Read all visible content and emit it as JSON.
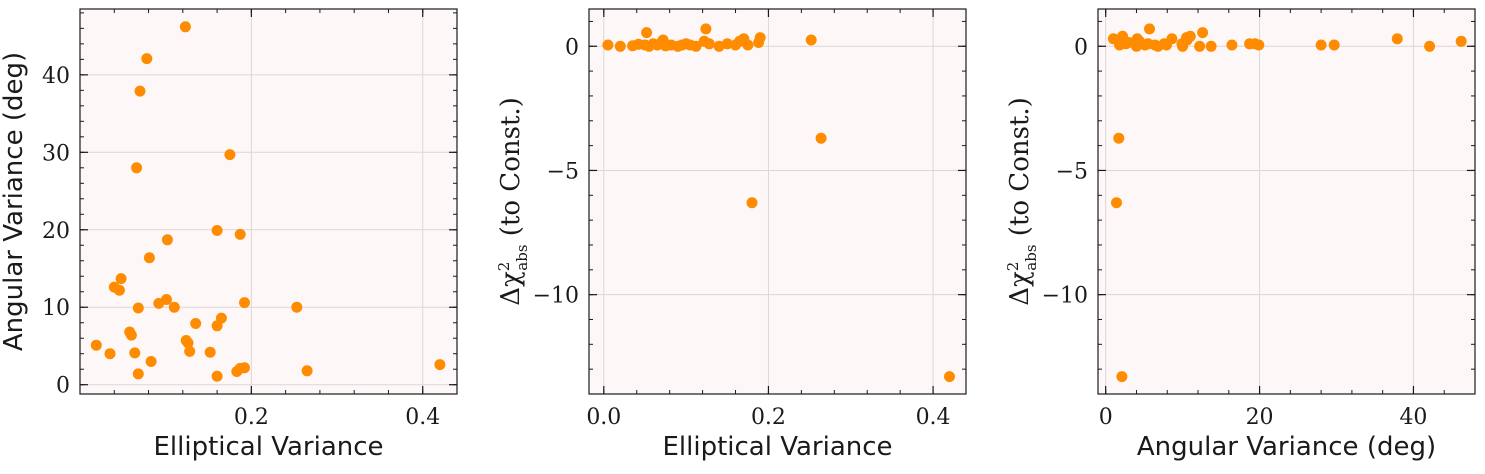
{
  "colors": {
    "marker": "#ff8c00",
    "plot_bg": "#fdf8f7",
    "grid": "#dcd6d6",
    "axes": "#1a1a1a"
  },
  "chart_data": [
    {
      "type": "scatter",
      "title": "",
      "xlabel": "Elliptical Variance",
      "ylabel": "Angular Variance (deg)",
      "xlim": [
        0.0,
        0.44
      ],
      "ylim": [
        -1.2,
        48.5
      ],
      "xticks": [
        0.2,
        0.4
      ],
      "xtick_labels": [
        "0.2",
        "0.4"
      ],
      "yticks": [
        0,
        10,
        20,
        30,
        40
      ],
      "ytick_labels": [
        "0",
        "10",
        "20",
        "30",
        "40"
      ],
      "grid": true,
      "x": [
        0.123,
        0.078,
        0.07,
        0.175,
        0.066,
        0.16,
        0.187,
        0.102,
        0.081,
        0.192,
        0.253,
        0.092,
        0.101,
        0.11,
        0.04,
        0.048,
        0.046,
        0.068,
        0.135,
        0.165,
        0.058,
        0.16,
        0.06,
        0.124,
        0.126,
        0.128,
        0.152,
        0.064,
        0.019,
        0.035,
        0.083,
        0.187,
        0.192,
        0.183,
        0.265,
        0.068,
        0.16,
        0.42
      ],
      "y": [
        46.2,
        42.1,
        37.9,
        29.7,
        28.0,
        19.9,
        19.4,
        18.7,
        16.4,
        10.6,
        10.0,
        10.5,
        11.0,
        10.0,
        12.6,
        13.7,
        12.2,
        9.9,
        7.9,
        8.6,
        6.8,
        7.6,
        6.4,
        5.7,
        5.4,
        4.3,
        4.2,
        4.1,
        5.1,
        4.0,
        3.0,
        2.1,
        2.2,
        1.7,
        1.8,
        1.4,
        1.1,
        2.6
      ]
    },
    {
      "type": "scatter",
      "title": "",
      "xlabel": "Elliptical Variance",
      "ylabel": {
        "prefix": "Δχ",
        "sup": "2",
        "sub": "abs",
        "suffix": " (to Const.)"
      },
      "xlim": [
        -0.018,
        0.44
      ],
      "ylim": [
        -14.0,
        1.5
      ],
      "xticks": [
        0.0,
        0.2,
        0.4
      ],
      "xtick_labels": [
        "0.0",
        "0.2",
        "0.4"
      ],
      "yticks": [
        0,
        -5,
        -10
      ],
      "ytick_labels": [
        "0",
        "−5",
        "−10"
      ],
      "grid": true,
      "x": [
        0.005,
        0.02,
        0.035,
        0.042,
        0.05,
        0.055,
        0.06,
        0.065,
        0.07,
        0.075,
        0.082,
        0.09,
        0.095,
        0.1,
        0.105,
        0.112,
        0.122,
        0.128,
        0.14,
        0.15,
        0.16,
        0.165,
        0.17,
        0.175,
        0.188,
        0.19,
        0.252,
        0.052,
        0.072,
        0.124,
        0.18,
        0.264,
        0.42
      ],
      "y": [
        0.05,
        0.0,
        0.02,
        0.08,
        0.05,
        0.0,
        0.1,
        0.05,
        0.15,
        0.02,
        0.05,
        0.0,
        0.05,
        0.1,
        0.05,
        0.0,
        0.2,
        0.1,
        0.0,
        0.1,
        0.05,
        0.2,
        0.3,
        0.05,
        0.15,
        0.35,
        0.25,
        0.55,
        0.25,
        0.7,
        -6.3,
        -3.7,
        -13.3
      ]
    },
    {
      "type": "scatter",
      "title": "",
      "xlabel": "Angular Variance (deg)",
      "ylabel": {
        "prefix": "Δχ",
        "sup": "2",
        "sub": "abs",
        "suffix": " (to Const.)"
      },
      "xlim": [
        -1.0,
        48.0
      ],
      "ylim": [
        -14.0,
        1.5
      ],
      "xticks": [
        0,
        20,
        40
      ],
      "xtick_labels": [
        "0",
        "20",
        "40"
      ],
      "yticks": [
        0,
        -5,
        -10
      ],
      "ytick_labels": [
        "0",
        "−5",
        "−10"
      ],
      "grid": true,
      "x": [
        1.0,
        1.8,
        2.2,
        2.6,
        3.0,
        4.0,
        4.1,
        4.2,
        4.4,
        5.1,
        5.5,
        6.4,
        6.8,
        7.6,
        7.9,
        8.6,
        9.9,
        10.0,
        10.5,
        10.6,
        11.0,
        12.2,
        12.6,
        13.7,
        16.4,
        18.7,
        19.4,
        19.9,
        28.0,
        29.7,
        37.9,
        42.1,
        46.2,
        5.7,
        1.7,
        1.4,
        2.1
      ],
      "y": [
        0.3,
        0.05,
        0.4,
        0.1,
        0.15,
        0.0,
        0.3,
        0.1,
        0.2,
        0.05,
        0.1,
        0.05,
        0.0,
        0.1,
        0.05,
        0.3,
        0.1,
        0.0,
        0.35,
        0.25,
        0.4,
        0.0,
        0.55,
        0.0,
        0.05,
        0.1,
        0.1,
        0.05,
        0.05,
        0.05,
        0.3,
        0.0,
        0.2,
        0.7,
        -3.7,
        -6.3,
        -13.3
      ]
    }
  ]
}
